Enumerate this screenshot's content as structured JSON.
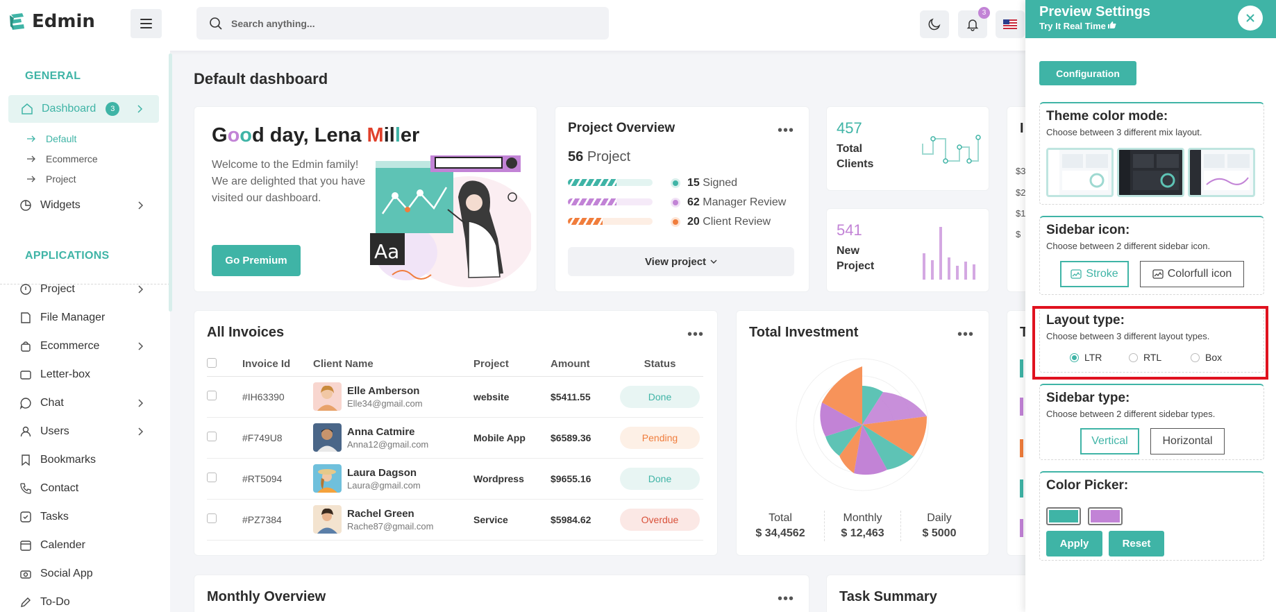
{
  "brand": {
    "name": "Edmin"
  },
  "header": {
    "search_placeholder": "Search anything...",
    "notification_count": "3"
  },
  "sidebar": {
    "general_label": "GENERAL",
    "dashboard": {
      "label": "Dashboard",
      "count": "3"
    },
    "dashboard_sub": [
      "Default",
      "Ecommerce",
      "Project"
    ],
    "widgets_label": "Widgets",
    "applications_label": "APPLICATIONS",
    "apps": [
      "Project",
      "File Manager",
      "Ecommerce",
      "Letter-box",
      "Chat",
      "Users",
      "Bookmarks",
      "Contact",
      "Tasks",
      "Calender",
      "Social App",
      "To-Do"
    ]
  },
  "main": {
    "page_title": "Default dashboard",
    "welcome": {
      "greeting": "Good day, Lena Miller",
      "text": "Welcome to the Edmin family! We are delighted that you have visited our dashboard.",
      "button": "Go Premium"
    },
    "project_overview": {
      "title": "Project Overview",
      "count_num": "56",
      "count_label": "Project",
      "legend": [
        {
          "num": "15",
          "label": "Signed",
          "color": "#3fb4a6"
        },
        {
          "num": "62",
          "label": "Manager Review",
          "color": "#c283d6"
        },
        {
          "num": "20",
          "label": "Client Review",
          "color": "#f07d3c"
        }
      ],
      "button": "View project"
    },
    "total_clients": {
      "num": "457",
      "label": "Total Clients"
    },
    "new_project": {
      "num": "541",
      "label": "New Project"
    },
    "invoices": {
      "title": "All Invoices",
      "columns": [
        "Invoice Id",
        "Client Name",
        "Project",
        "Amount",
        "Status"
      ],
      "rows": [
        {
          "id": "#IH63390",
          "name": "Elle Amberson",
          "email": "Elle34@gmail.com",
          "project": "website",
          "amount": "$5411.55",
          "status": "Done"
        },
        {
          "id": "#F749U8",
          "name": "Anna Catmire",
          "email": "Anna12@gmail.com",
          "project": "Mobile App",
          "amount": "$6589.36",
          "status": "Pending"
        },
        {
          "id": "#RT5094",
          "name": "Laura Dagson",
          "email": "Laura@gmail.com",
          "project": "Wordpress",
          "amount": "$9655.16",
          "status": "Done"
        },
        {
          "id": "#PZ7384",
          "name": "Rachel Green",
          "email": "Rache87@gmail.com",
          "project": "Service",
          "amount": "$5984.62",
          "status": "Overdue"
        }
      ]
    },
    "investment": {
      "title": "Total Investment",
      "stats": [
        {
          "label": "Total",
          "value": "$ 34,4562"
        },
        {
          "label": "Monthly",
          "value": "$ 12,463"
        },
        {
          "label": "Daily",
          "value": "$ 5000"
        }
      ]
    },
    "monthly_title": "Monthly Overview",
    "task_title": "Task Summary",
    "partial_axis": [
      "$3",
      "$2",
      "$1",
      "$"
    ],
    "partial_title_1": "I",
    "partial_title_2": "T"
  },
  "settings": {
    "title": "Preview Settings",
    "subtitle": "Try It Real Time",
    "config_btn": "Configuration",
    "theme": {
      "title": "Theme color mode:",
      "desc": "Choose between 3 different mix layout."
    },
    "sidebar_icon": {
      "title": "Sidebar icon:",
      "desc": "Choose between 2 different sidebar icon.",
      "options": [
        "Stroke",
        "Colorfull icon"
      ]
    },
    "layout": {
      "title": "Layout type:",
      "desc": "Choose between 3 different layout types.",
      "options": [
        "LTR",
        "RTL",
        "Box"
      ],
      "selected": "LTR"
    },
    "sidebar_type": {
      "title": "Sidebar type:",
      "desc": "Choose between 2 different sidebar types.",
      "options": [
        "Vertical",
        "Horizontal"
      ]
    },
    "color_picker": {
      "title": "Color Picker:",
      "colors": [
        "#3fb4a6",
        "#c283d6"
      ],
      "apply": "Apply",
      "reset": "Reset"
    }
  }
}
